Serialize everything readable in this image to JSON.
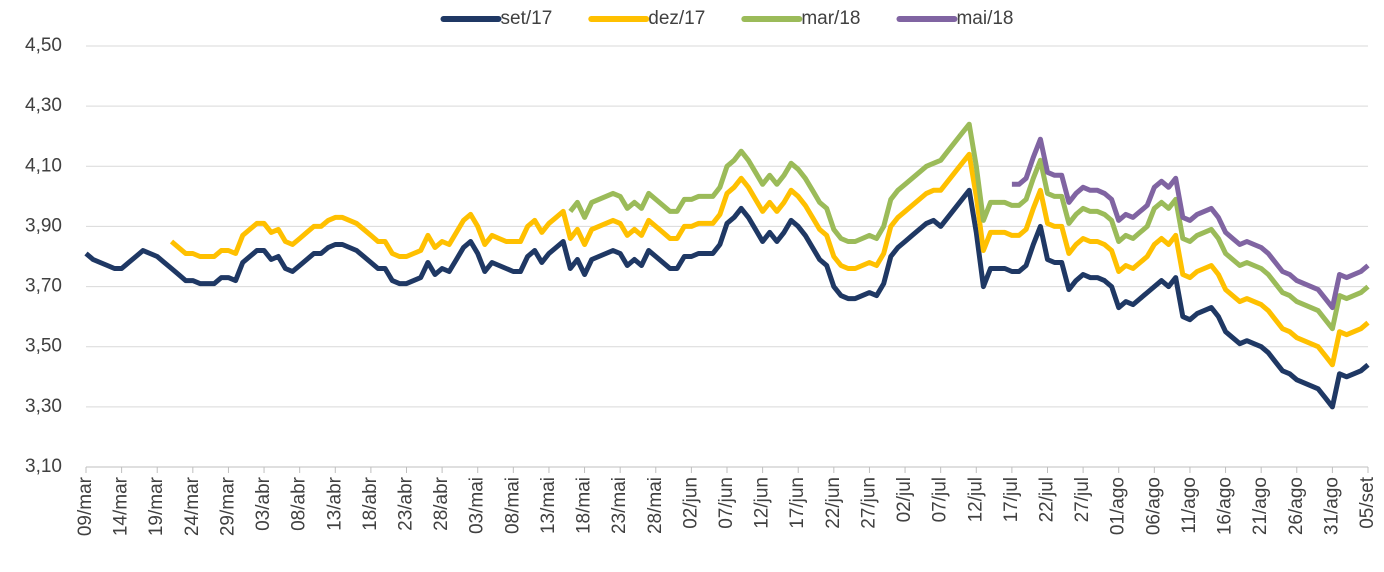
{
  "chart_data": {
    "type": "line",
    "categories": [
      "09/mar",
      null,
      null,
      null,
      null,
      "14/mar",
      null,
      null,
      null,
      null,
      "19/mar",
      null,
      null,
      null,
      null,
      "24/mar",
      null,
      null,
      null,
      null,
      "29/mar",
      null,
      null,
      null,
      null,
      "03/abr",
      null,
      null,
      null,
      null,
      "08/abr",
      null,
      null,
      null,
      null,
      "13/abr",
      null,
      null,
      null,
      null,
      "18/abr",
      null,
      null,
      null,
      null,
      "23/abr",
      null,
      null,
      null,
      null,
      "28/abr",
      null,
      null,
      null,
      null,
      "03/mai",
      null,
      null,
      null,
      null,
      "08/mai",
      null,
      null,
      null,
      null,
      "13/mai",
      null,
      null,
      null,
      null,
      "18/mai",
      null,
      null,
      null,
      null,
      "23/mai",
      null,
      null,
      null,
      null,
      "28/mai",
      null,
      null,
      null,
      null,
      "02/jun",
      null,
      null,
      null,
      null,
      "07/jun",
      null,
      null,
      null,
      null,
      "12/jun",
      null,
      null,
      null,
      null,
      "17/jun",
      null,
      null,
      null,
      null,
      "22/jun",
      null,
      null,
      null,
      null,
      "27/jun",
      null,
      null,
      null,
      null,
      "02/jul",
      null,
      null,
      null,
      null,
      "07/jul",
      null,
      null,
      null,
      null,
      "12/jul",
      null,
      null,
      null,
      null,
      "17/jul",
      null,
      null,
      null,
      null,
      "22/jul",
      null,
      null,
      null,
      null,
      "27/jul",
      null,
      null,
      null,
      null,
      "01/ago",
      null,
      null,
      null,
      null,
      "06/ago",
      null,
      null,
      null,
      null,
      "11/ago",
      null,
      null,
      null,
      null,
      "16/ago",
      null,
      null,
      null,
      null,
      "21/ago",
      null,
      null,
      null,
      null,
      "26/ago",
      null,
      null,
      null,
      null,
      "31/ago",
      null,
      null,
      null,
      null,
      "05/set"
    ],
    "series": [
      {
        "name": "set/17",
        "color": "#1f3864",
        "values": [
          3.81,
          3.79,
          3.78,
          3.77,
          3.76,
          3.76,
          3.78,
          3.8,
          3.82,
          3.81,
          3.8,
          3.78,
          3.76,
          3.74,
          3.72,
          3.72,
          3.71,
          3.71,
          3.71,
          3.73,
          3.73,
          3.72,
          3.78,
          3.8,
          3.82,
          3.82,
          3.79,
          3.8,
          3.76,
          3.75,
          3.77,
          3.79,
          3.81,
          3.81,
          3.83,
          3.84,
          3.84,
          3.83,
          3.82,
          3.8,
          3.78,
          3.76,
          3.76,
          3.72,
          3.71,
          3.71,
          3.72,
          3.73,
          3.78,
          3.74,
          3.76,
          3.75,
          3.79,
          3.83,
          3.85,
          3.81,
          3.75,
          3.78,
          3.77,
          3.76,
          3.75,
          3.75,
          3.8,
          3.82,
          3.78,
          3.81,
          3.83,
          3.85,
          3.76,
          3.79,
          3.74,
          3.79,
          3.8,
          3.81,
          3.82,
          3.81,
          3.77,
          3.79,
          3.77,
          3.82,
          3.8,
          3.78,
          3.76,
          3.76,
          3.8,
          3.8,
          3.81,
          3.81,
          3.81,
          3.84,
          3.91,
          3.93,
          3.96,
          3.93,
          3.89,
          3.85,
          3.88,
          3.85,
          3.88,
          3.92,
          3.9,
          3.87,
          3.83,
          3.79,
          3.77,
          3.7,
          3.67,
          3.66,
          3.66,
          3.67,
          3.68,
          3.67,
          3.71,
          3.8,
          3.83,
          3.85,
          3.87,
          3.89,
          3.91,
          3.92,
          3.9,
          3.93,
          3.96,
          3.99,
          4.02,
          3.88,
          3.7,
          3.76,
          3.76,
          3.76,
          3.75,
          3.75,
          3.77,
          3.84,
          3.9,
          3.79,
          3.78,
          3.78,
          3.69,
          3.72,
          3.74,
          3.73,
          3.73,
          3.72,
          3.7,
          3.63,
          3.65,
          3.64,
          3.66,
          3.68,
          3.7,
          3.72,
          3.7,
          3.73,
          3.6,
          3.59,
          3.61,
          3.62,
          3.63,
          3.6,
          3.55,
          3.53,
          3.51,
          3.52,
          3.51,
          3.5,
          3.48,
          3.45,
          3.42,
          3.41,
          3.39,
          3.38,
          3.37,
          3.36,
          3.33,
          3.3,
          3.41,
          3.4,
          3.41,
          3.42,
          3.44
        ]
      },
      {
        "name": "dez/17",
        "color": "#ffc000",
        "values": [
          null,
          null,
          null,
          null,
          null,
          null,
          null,
          null,
          null,
          null,
          null,
          null,
          3.85,
          3.83,
          3.81,
          3.81,
          3.8,
          3.8,
          3.8,
          3.82,
          3.82,
          3.81,
          3.87,
          3.89,
          3.91,
          3.91,
          3.88,
          3.89,
          3.85,
          3.84,
          3.86,
          3.88,
          3.9,
          3.9,
          3.92,
          3.93,
          3.93,
          3.92,
          3.91,
          3.89,
          3.87,
          3.85,
          3.85,
          3.81,
          3.8,
          3.8,
          3.81,
          3.82,
          3.87,
          3.83,
          3.85,
          3.84,
          3.88,
          3.92,
          3.94,
          3.9,
          3.84,
          3.87,
          3.86,
          3.85,
          3.85,
          3.85,
          3.9,
          3.92,
          3.88,
          3.91,
          3.93,
          3.95,
          3.86,
          3.89,
          3.84,
          3.89,
          3.9,
          3.91,
          3.92,
          3.91,
          3.87,
          3.89,
          3.87,
          3.92,
          3.9,
          3.88,
          3.86,
          3.86,
          3.9,
          3.9,
          3.91,
          3.91,
          3.91,
          3.94,
          4.01,
          4.03,
          4.06,
          4.03,
          3.99,
          3.95,
          3.98,
          3.95,
          3.98,
          4.02,
          4.0,
          3.97,
          3.93,
          3.89,
          3.87,
          3.8,
          3.77,
          3.76,
          3.76,
          3.77,
          3.78,
          3.77,
          3.81,
          3.9,
          3.93,
          3.95,
          3.97,
          3.99,
          4.01,
          4.02,
          4.02,
          4.05,
          4.08,
          4.11,
          4.14,
          4.0,
          3.82,
          3.88,
          3.88,
          3.88,
          3.87,
          3.87,
          3.89,
          3.96,
          4.02,
          3.91,
          3.9,
          3.9,
          3.81,
          3.84,
          3.86,
          3.85,
          3.85,
          3.84,
          3.82,
          3.75,
          3.77,
          3.76,
          3.78,
          3.8,
          3.84,
          3.86,
          3.84,
          3.87,
          3.74,
          3.73,
          3.75,
          3.76,
          3.77,
          3.74,
          3.69,
          3.67,
          3.65,
          3.66,
          3.65,
          3.64,
          3.62,
          3.59,
          3.56,
          3.55,
          3.53,
          3.52,
          3.51,
          3.5,
          3.47,
          3.44,
          3.55,
          3.54,
          3.55,
          3.56,
          3.58
        ]
      },
      {
        "name": "mar/18",
        "color": "#9bbb59",
        "values": [
          null,
          null,
          null,
          null,
          null,
          null,
          null,
          null,
          null,
          null,
          null,
          null,
          null,
          null,
          null,
          null,
          null,
          null,
          null,
          null,
          null,
          null,
          null,
          null,
          null,
          null,
          null,
          null,
          null,
          null,
          null,
          null,
          null,
          null,
          null,
          null,
          null,
          null,
          null,
          null,
          null,
          null,
          null,
          null,
          null,
          null,
          null,
          null,
          null,
          null,
          null,
          null,
          null,
          null,
          null,
          null,
          null,
          null,
          null,
          null,
          null,
          null,
          null,
          null,
          null,
          null,
          null,
          null,
          3.95,
          3.98,
          3.93,
          3.98,
          3.99,
          4.0,
          4.01,
          4.0,
          3.96,
          3.98,
          3.96,
          4.01,
          3.99,
          3.97,
          3.95,
          3.95,
          3.99,
          3.99,
          4.0,
          4.0,
          4.0,
          4.03,
          4.1,
          4.12,
          4.15,
          4.12,
          4.08,
          4.04,
          4.07,
          4.04,
          4.07,
          4.11,
          4.09,
          4.06,
          4.02,
          3.98,
          3.96,
          3.89,
          3.86,
          3.85,
          3.85,
          3.86,
          3.87,
          3.86,
          3.9,
          3.99,
          4.02,
          4.04,
          4.06,
          4.08,
          4.1,
          4.11,
          4.12,
          4.15,
          4.18,
          4.21,
          4.24,
          4.1,
          3.92,
          3.98,
          3.98,
          3.98,
          3.97,
          3.97,
          3.99,
          4.06,
          4.12,
          4.01,
          4.0,
          4.0,
          3.91,
          3.94,
          3.96,
          3.95,
          3.95,
          3.94,
          3.92,
          3.85,
          3.87,
          3.86,
          3.88,
          3.9,
          3.96,
          3.98,
          3.96,
          3.99,
          3.86,
          3.85,
          3.87,
          3.88,
          3.89,
          3.86,
          3.81,
          3.79,
          3.77,
          3.78,
          3.77,
          3.76,
          3.74,
          3.71,
          3.68,
          3.67,
          3.65,
          3.64,
          3.63,
          3.62,
          3.59,
          3.56,
          3.67,
          3.66,
          3.67,
          3.68,
          3.7
        ]
      },
      {
        "name": "mai/18",
        "color": "#8064a2",
        "values": [
          null,
          null,
          null,
          null,
          null,
          null,
          null,
          null,
          null,
          null,
          null,
          null,
          null,
          null,
          null,
          null,
          null,
          null,
          null,
          null,
          null,
          null,
          null,
          null,
          null,
          null,
          null,
          null,
          null,
          null,
          null,
          null,
          null,
          null,
          null,
          null,
          null,
          null,
          null,
          null,
          null,
          null,
          null,
          null,
          null,
          null,
          null,
          null,
          null,
          null,
          null,
          null,
          null,
          null,
          null,
          null,
          null,
          null,
          null,
          null,
          null,
          null,
          null,
          null,
          null,
          null,
          null,
          null,
          null,
          null,
          null,
          null,
          null,
          null,
          null,
          null,
          null,
          null,
          null,
          null,
          null,
          null,
          null,
          null,
          null,
          null,
          null,
          null,
          null,
          null,
          null,
          null,
          null,
          null,
          null,
          null,
          null,
          null,
          null,
          null,
          null,
          null,
          null,
          null,
          null,
          null,
          null,
          null,
          null,
          null,
          null,
          null,
          null,
          null,
          null,
          null,
          null,
          null,
          null,
          null,
          null,
          null,
          null,
          null,
          null,
          null,
          null,
          null,
          null,
          null,
          4.04,
          4.04,
          4.06,
          4.13,
          4.19,
          4.08,
          4.07,
          4.07,
          3.98,
          4.01,
          4.03,
          4.02,
          4.02,
          4.01,
          3.99,
          3.92,
          3.94,
          3.93,
          3.95,
          3.97,
          4.03,
          4.05,
          4.03,
          4.06,
          3.93,
          3.92,
          3.94,
          3.95,
          3.96,
          3.93,
          3.88,
          3.86,
          3.84,
          3.85,
          3.84,
          3.83,
          3.81,
          3.78,
          3.75,
          3.74,
          3.72,
          3.71,
          3.7,
          3.69,
          3.66,
          3.63,
          3.74,
          3.73,
          3.74,
          3.75,
          3.77
        ]
      }
    ],
    "ylim": [
      3.1,
      4.5
    ],
    "yticks": [
      {
        "value": 3.1,
        "label": "3,10"
      },
      {
        "value": 3.3,
        "label": "3,30"
      },
      {
        "value": 3.5,
        "label": "3,50"
      },
      {
        "value": 3.7,
        "label": "3,70"
      },
      {
        "value": 3.9,
        "label": "3,90"
      },
      {
        "value": 4.1,
        "label": "4,10"
      },
      {
        "value": 4.3,
        "label": "4,30"
      },
      {
        "value": 4.5,
        "label": "4,50"
      }
    ],
    "grid": true,
    "legend": "top"
  }
}
